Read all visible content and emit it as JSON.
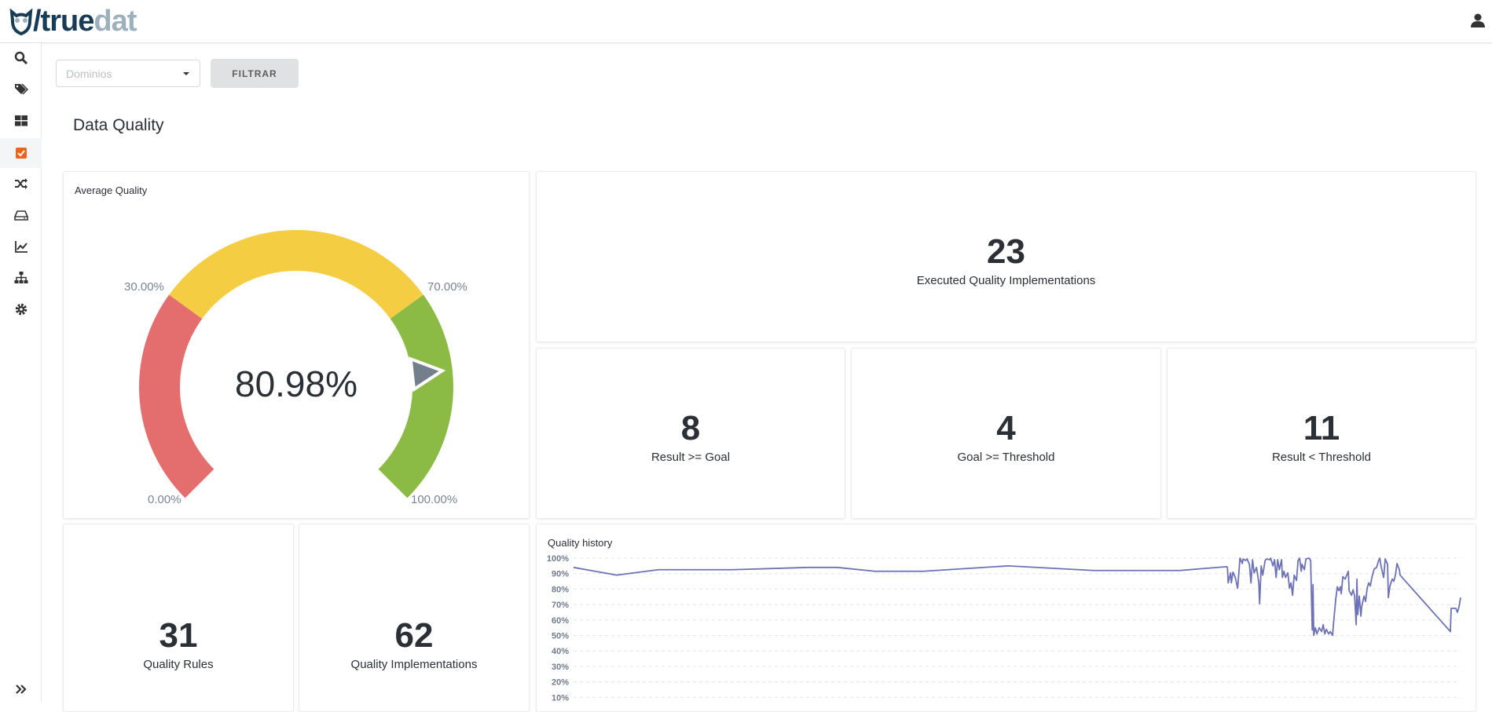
{
  "app": {
    "logo_part1": "/true",
    "logo_part2": "dat"
  },
  "sidebar": {
    "items": [
      {
        "name": "search",
        "icon": "search-icon"
      },
      {
        "name": "tags",
        "icon": "tags-icon"
      },
      {
        "name": "dashboard",
        "icon": "grid-icon"
      },
      {
        "name": "quality",
        "icon": "check-square-icon",
        "active": true
      },
      {
        "name": "lineage",
        "icon": "shuffle-icon"
      },
      {
        "name": "structures",
        "icon": "hdd-icon"
      },
      {
        "name": "metrics",
        "icon": "chart-line-icon"
      },
      {
        "name": "hierarchy",
        "icon": "sitemap-icon"
      },
      {
        "name": "settings",
        "icon": "cog-icon"
      }
    ],
    "expand_icon": "double-chevron-right-icon"
  },
  "filters": {
    "domain_placeholder": "Dominios",
    "filter_button": "FILTRAR"
  },
  "page": {
    "title": "Data Quality"
  },
  "average_quality": {
    "title": "Average Quality",
    "value": 80.98,
    "value_label": "80.98%",
    "thresholds": [
      {
        "label": "0.00%"
      },
      {
        "label": "30.00%"
      },
      {
        "label": "70.00%"
      },
      {
        "label": "100.00%"
      }
    ],
    "colors": {
      "low": "#e46e6e",
      "mid": "#f5cd43",
      "high": "#8bbb45",
      "pointer": "#747f8d"
    }
  },
  "stats": {
    "executed": {
      "value": "23",
      "label": "Executed Quality Implementations"
    },
    "result_goal": {
      "value": "8",
      "label": "Result >= Goal"
    },
    "goal_threshold": {
      "value": "4",
      "label": "Goal >= Threshold"
    },
    "result_threshold": {
      "value": "11",
      "label": "Result < Threshold"
    },
    "rules": {
      "value": "31",
      "label": "Quality Rules"
    },
    "implementations": {
      "value": "62",
      "label": "Quality Implementations"
    }
  },
  "chart_data": {
    "type": "line",
    "title": "Quality history",
    "xlabel": "",
    "ylabel": "",
    "ylim": [
      0,
      100
    ],
    "xlim": [
      0,
      1130
    ],
    "grid": true,
    "line_color": "#6c72b5",
    "yticks": [
      "100%",
      "90%",
      "80%",
      "70%",
      "60%",
      "50%",
      "40%",
      "30%",
      "20%",
      "10%"
    ],
    "points": [
      [
        0,
        94
      ],
      [
        55,
        89
      ],
      [
        108,
        92.5
      ],
      [
        202,
        92.5
      ],
      [
        299,
        94
      ],
      [
        336,
        94
      ],
      [
        384,
        91.5
      ],
      [
        445,
        91.5
      ],
      [
        554,
        95
      ],
      [
        663,
        92
      ],
      [
        772,
        92
      ],
      [
        832,
        94.5
      ],
      [
        833,
        94
      ],
      [
        834,
        84
      ],
      [
        837,
        90.5
      ],
      [
        838,
        84
      ],
      [
        840,
        91
      ],
      [
        843,
        87.5
      ],
      [
        846,
        80.5
      ],
      [
        849,
        100
      ],
      [
        852,
        96.5
      ],
      [
        853,
        99.5
      ],
      [
        856,
        98.5
      ],
      [
        858,
        99.5
      ],
      [
        861,
        96
      ],
      [
        863,
        84
      ],
      [
        865,
        99
      ],
      [
        867,
        90.5
      ],
      [
        870,
        94
      ],
      [
        873,
        84
      ],
      [
        874,
        70.5
      ],
      [
        876,
        95
      ],
      [
        878,
        89
      ],
      [
        881,
        98.5
      ],
      [
        883,
        99.5
      ],
      [
        887,
        99
      ],
      [
        888,
        100
      ],
      [
        891,
        95
      ],
      [
        893,
        99
      ],
      [
        895,
        87.5
      ],
      [
        897,
        99
      ],
      [
        899,
        92.5
      ],
      [
        902,
        99
      ],
      [
        903,
        87.5
      ],
      [
        905,
        91.5
      ],
      [
        907,
        87.5
      ],
      [
        910,
        90.5
      ],
      [
        912,
        80.5
      ],
      [
        914,
        84
      ],
      [
        916,
        76
      ],
      [
        918,
        89
      ],
      [
        921,
        85.5
      ],
      [
        923,
        98.5
      ],
      [
        925,
        100
      ],
      [
        927,
        91.5
      ],
      [
        928,
        96
      ],
      [
        931,
        92.5
      ],
      [
        933,
        99.5
      ],
      [
        937,
        100
      ],
      [
        939,
        98.5
      ],
      [
        941,
        53.5
      ],
      [
        942,
        83
      ],
      [
        943,
        50
      ],
      [
        945,
        55
      ],
      [
        947,
        51
      ],
      [
        950,
        55
      ],
      [
        953,
        52.5
      ],
      [
        955,
        57
      ],
      [
        957,
        51
      ],
      [
        959,
        54
      ],
      [
        962,
        51
      ],
      [
        964,
        52.5
      ],
      [
        967,
        50
      ],
      [
        968,
        57
      ],
      [
        971,
        73.5
      ],
      [
        973,
        81.5
      ],
      [
        975,
        79
      ],
      [
        977,
        81.5
      ],
      [
        978,
        77
      ],
      [
        980,
        88
      ],
      [
        983,
        86.5
      ],
      [
        985,
        89
      ],
      [
        987,
        91.5
      ],
      [
        988,
        79
      ],
      [
        991,
        76
      ],
      [
        993,
        79.5
      ],
      [
        995,
        75.5
      ],
      [
        997,
        57
      ],
      [
        998,
        86.5
      ],
      [
        999,
        63.5
      ],
      [
        1001,
        75.5
      ],
      [
        1003,
        62.5
      ],
      [
        1004,
        68.5
      ],
      [
        1007,
        75.5
      ],
      [
        1009,
        72
      ],
      [
        1011,
        80.5
      ],
      [
        1013,
        84
      ],
      [
        1015,
        82
      ],
      [
        1017,
        87.5
      ],
      [
        1020,
        93
      ],
      [
        1023,
        94
      ],
      [
        1025,
        97.5
      ],
      [
        1027,
        100
      ],
      [
        1029,
        94
      ],
      [
        1032,
        87.5
      ],
      [
        1034,
        99.5
      ],
      [
        1037,
        96
      ],
      [
        1038,
        74.5
      ],
      [
        1040,
        82
      ],
      [
        1043,
        86.5
      ],
      [
        1045,
        85
      ],
      [
        1047,
        89
      ],
      [
        1049,
        96.5
      ],
      [
        1052,
        92.5
      ],
      [
        1053,
        89
      ],
      [
        1117,
        52.5
      ],
      [
        1118,
        67.5
      ],
      [
        1124,
        67.5
      ],
      [
        1126,
        65
      ],
      [
        1128,
        68.5
      ],
      [
        1130,
        74.5
      ]
    ]
  }
}
